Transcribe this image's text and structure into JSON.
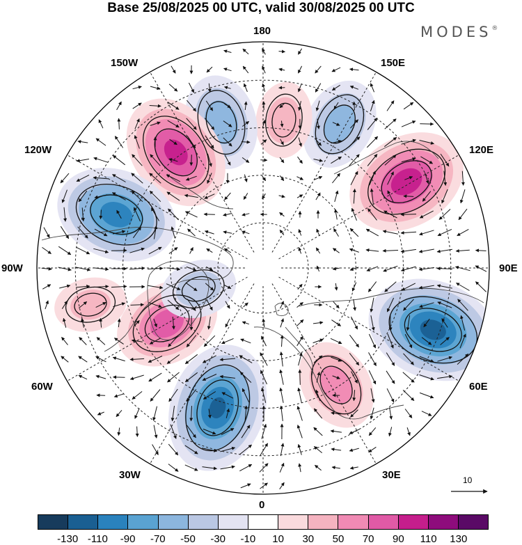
{
  "title": "Base 25/08/2025 00 UTC, valid 30/08/2025 00 UTC",
  "logo": {
    "text": "MODES",
    "mark": "®"
  },
  "longitude_labels": {
    "lon_180": "180",
    "lon_150e": "150E",
    "lon_120e": "120E",
    "lon_90e": "90E",
    "lon_60e": "60E",
    "lon_30e": "30E",
    "lon_0": "0",
    "lon_30w": "30W",
    "lon_60w": "60W",
    "lon_90w": "90W",
    "lon_120w": "120W",
    "lon_150w": "150W"
  },
  "reference_vector": {
    "value": "10",
    "icon": "arrow-right-icon"
  },
  "colorbar": {
    "colors": [
      "#173b5c",
      "#1a5f92",
      "#2a82bd",
      "#5aa3d2",
      "#8cb6de",
      "#bac7e3",
      "#e3e3f2",
      "#ffffff",
      "#fadadd",
      "#f5b3c0",
      "#f08ab4",
      "#e05aa6",
      "#c51e8c",
      "#8e0c7c",
      "#5a0a66"
    ],
    "ticks": [
      "-130",
      "-110",
      "-90",
      "-70",
      "-50",
      "-30",
      "-10",
      "10",
      "30",
      "50",
      "70",
      "90",
      "110",
      "130"
    ]
  },
  "anomaly_centers": [
    {
      "name": "low-90w",
      "sign": -1,
      "magnitude": 115,
      "bearing_deg": 290,
      "radius_frac": 0.8
    },
    {
      "name": "high-120w",
      "sign": 1,
      "magnitude": 100,
      "bearing_deg": 239,
      "radius_frac": 0.74
    },
    {
      "name": "low-150w",
      "sign": -1,
      "magnitude": 60,
      "bearing_deg": 208,
      "radius_frac": 0.72
    },
    {
      "name": "high-170w",
      "sign": 1,
      "magnitude": 40,
      "bearing_deg": 188,
      "radius_frac": 0.66
    },
    {
      "name": "low-165e",
      "sign": -1,
      "magnitude": 65,
      "bearing_deg": 164,
      "radius_frac": 0.67
    },
    {
      "name": "high-140e",
      "sign": 1,
      "magnitude": 95,
      "bearing_deg": 143,
      "radius_frac": 0.64
    },
    {
      "name": "low-100e",
      "sign": -1,
      "magnitude": 100,
      "bearing_deg": 110,
      "radius_frac": 0.69
    },
    {
      "name": "high-45e",
      "sign": 1,
      "magnitude": 80,
      "bearing_deg": 60,
      "radius_frac": 0.49
    },
    {
      "name": "low-10e",
      "sign": -1,
      "magnitude": 110,
      "bearing_deg": 18,
      "radius_frac": 0.65
    },
    {
      "name": "high-30w",
      "sign": 1,
      "magnitude": 60,
      "bearing_deg": 328,
      "radius_frac": 0.61
    },
    {
      "name": "low-60e-weak",
      "sign": -1,
      "magnitude": 40,
      "bearing_deg": 72,
      "radius_frac": 0.3
    },
    {
      "name": "high-70e-wide",
      "sign": 1,
      "magnitude": 35,
      "bearing_deg": 78,
      "radius_frac": 0.78
    }
  ],
  "colors": {
    "contour": "#111111",
    "grid": "#222222",
    "coast": "#444444",
    "arrow": "#111111"
  }
}
